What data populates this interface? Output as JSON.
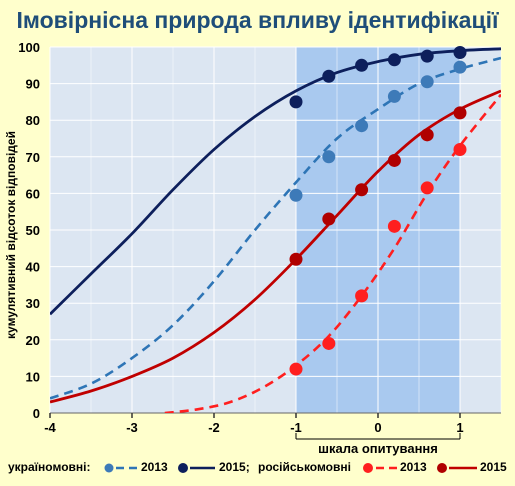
{
  "chart_data": {
    "type": "line",
    "title": "Імовірнісна природа впливу ідентифікації",
    "xlabel": "шкала опитування",
    "ylabel": "кумулятивний відсоток відповідей",
    "xlim": [
      -4,
      1.5
    ],
    "ylim": [
      0,
      100
    ],
    "x_ticks": [
      "-4",
      "-3",
      "-2",
      "-1",
      "0",
      "1"
    ],
    "y_ticks": [
      "0",
      "10",
      "20",
      "30",
      "40",
      "50",
      "60",
      "70",
      "80",
      "90",
      "100"
    ],
    "highlight_band": [
      -1,
      1
    ],
    "grid": true,
    "colors": {
      "ukr_2013": "#2e75b6",
      "ukr_2015": "#0d1f5c",
      "rus_2013": "#ff1f1f",
      "rus_2015": "#c00000",
      "ukr_2013_points": "#3d7ab8",
      "ukr_2015_points": "#0d1f5c",
      "rus_2013_points": "#ff1f1f",
      "rus_2015_points": "#b00000"
    },
    "series": [
      {
        "key": "ukr_2015",
        "style": "solid",
        "curve_x": [
          -4,
          -3.5,
          -3,
          -2.5,
          -2,
          -1.5,
          -1,
          -0.5,
          0,
          0.5,
          1,
          1.5
        ],
        "curve_y": [
          27,
          38,
          49,
          61,
          72,
          81,
          88,
          93,
          96,
          98,
          99,
          99.5
        ],
        "points_x": [
          -1.0,
          -0.6,
          -0.2,
          0.2,
          0.6,
          1.0
        ],
        "points_y": [
          85,
          92,
          95,
          96.5,
          97.5,
          98.5
        ]
      },
      {
        "key": "ukr_2013",
        "style": "dashed",
        "curve_x": [
          -4,
          -3.5,
          -3,
          -2.5,
          -2,
          -1.5,
          -1,
          -0.5,
          0,
          0.5,
          1,
          1.5
        ],
        "curve_y": [
          4,
          8,
          15,
          24,
          36,
          50,
          63,
          75,
          83,
          90,
          94,
          97
        ],
        "points_x": [
          -1.0,
          -0.6,
          -0.2,
          0.2,
          0.6,
          1.0
        ],
        "points_y": [
          59.5,
          70,
          78.5,
          86.5,
          90.5,
          94.5
        ]
      },
      {
        "key": "rus_2015",
        "style": "solid",
        "curve_x": [
          -4,
          -3.5,
          -3,
          -2.5,
          -2,
          -1.5,
          -1,
          -0.5,
          0,
          0.5,
          1,
          1.5
        ],
        "curve_y": [
          3,
          6,
          10,
          15,
          22,
          31,
          42,
          54,
          66,
          76,
          83,
          88
        ],
        "points_x": [
          -1.0,
          -0.6,
          -0.2,
          0.2,
          0.6,
          1.0
        ],
        "points_y": [
          42,
          53,
          61,
          69,
          76,
          82
        ]
      },
      {
        "key": "rus_2013",
        "style": "dashed",
        "curve_x": [
          -2.6,
          -2.2,
          -1.8,
          -1.4,
          -1,
          -0.6,
          -0.2,
          0.2,
          0.6,
          1,
          1.5
        ],
        "curve_y": [
          0,
          1,
          3,
          7,
          13,
          21,
          32,
          45,
          60,
          73,
          87
        ],
        "points_x": [
          -1.0,
          -0.6,
          -0.2,
          0.2,
          0.6,
          1.0
        ],
        "points_y": [
          12,
          19,
          32,
          51,
          61.5,
          72
        ]
      }
    ],
    "legend": {
      "placement": "bottom",
      "ukr_label": "україномовні:",
      "rus_label": "російськомовні",
      "year_2013": "2013",
      "year_2015_ukr": "2015;",
      "year_2015_rus": "2015"
    }
  }
}
